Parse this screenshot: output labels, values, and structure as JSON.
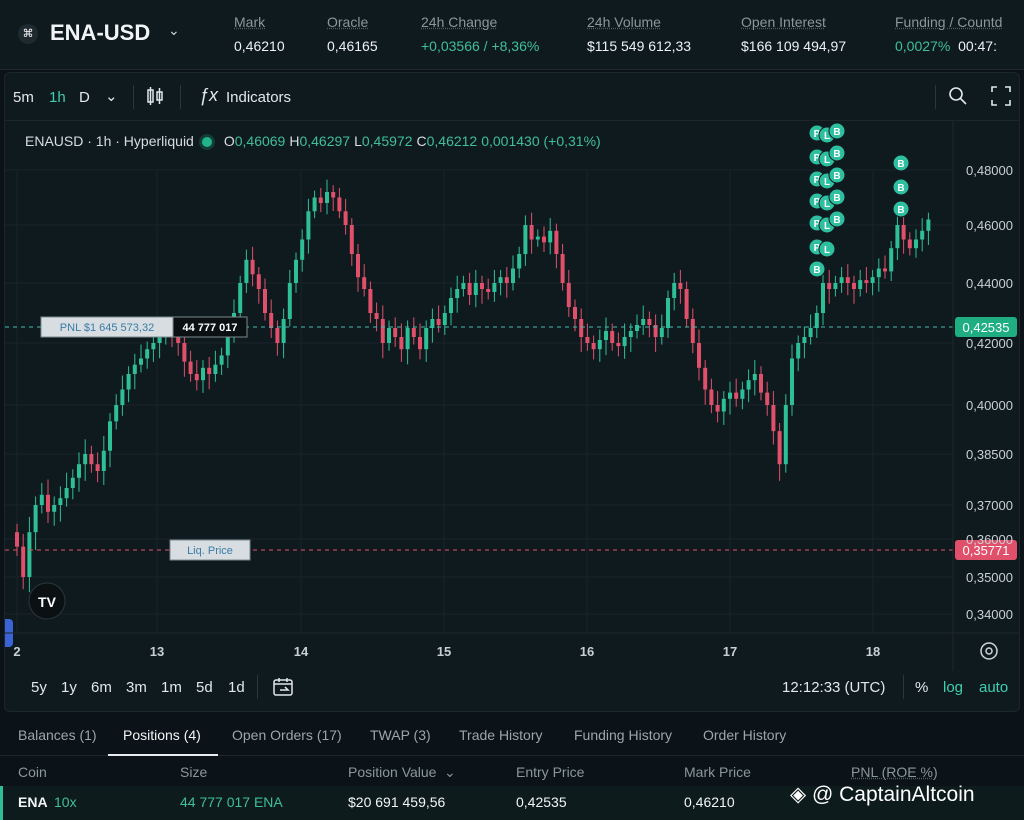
{
  "header": {
    "logo": "⌘",
    "pair": "ENA-USD",
    "stats": [
      {
        "label": "Mark",
        "value": "0,46210",
        "green": false
      },
      {
        "label": "Oracle",
        "value": "0,46165",
        "green": false
      },
      {
        "label": "24h Change",
        "value": "+0,03566 / +8,36%",
        "green": true
      },
      {
        "label": "24h Volume",
        "value": "$115 549 612,33",
        "green": false
      },
      {
        "label": "Open Interest",
        "value": "$166 109 494,97",
        "green": false
      },
      {
        "label": "Funding / Countd",
        "value_a": "0,0027%",
        "value_b": "00:47:",
        "green": true
      }
    ]
  },
  "toolbar": {
    "intervals": [
      "5m",
      "1h",
      "D"
    ],
    "active_interval": "1h",
    "indicators_label": "Indicators"
  },
  "legend": {
    "symbol": "ENAUSD · 1h · Hyperliquid",
    "o": "0,46069",
    "h": "0,46297",
    "l": "0,45972",
    "c": "0,46212",
    "change": "0,001430 (+0,31%)"
  },
  "chart_data": {
    "type": "candlestick",
    "x_ticks": [
      "2",
      "13",
      "14",
      "15",
      "16",
      "17",
      "18"
    ],
    "y_ticks": [
      "0,48000",
      "0,46000",
      "0,44000",
      "0,42000",
      "0,40000",
      "0,38500",
      "0,37000",
      "0,36000",
      "0,35000",
      "0,34000"
    ],
    "price_label": "0,42535",
    "liq_price_value": "0,35771",
    "pnl_label": "PNL $1 645 573,32",
    "size_label": "44 777 017",
    "liq_label": "Liq. Price",
    "trade_markers": [
      "P",
      "L",
      "B"
    ],
    "closes": [
      0.358,
      0.35,
      0.362,
      0.37,
      0.373,
      0.368,
      0.37,
      0.372,
      0.375,
      0.378,
      0.382,
      0.385,
      0.382,
      0.38,
      0.386,
      0.395,
      0.4,
      0.405,
      0.41,
      0.413,
      0.415,
      0.418,
      0.42,
      0.422,
      0.425,
      0.422,
      0.42,
      0.414,
      0.41,
      0.408,
      0.412,
      0.41,
      0.413,
      0.416,
      0.425,
      0.43,
      0.44,
      0.448,
      0.443,
      0.438,
      0.43,
      0.425,
      0.42,
      0.428,
      0.44,
      0.448,
      0.455,
      0.465,
      0.47,
      0.468,
      0.472,
      0.47,
      0.465,
      0.46,
      0.45,
      0.442,
      0.438,
      0.43,
      0.428,
      0.42,
      0.425,
      0.422,
      0.418,
      0.425,
      0.422,
      0.418,
      0.425,
      0.428,
      0.426,
      0.43,
      0.435,
      0.438,
      0.44,
      0.436,
      0.44,
      0.438,
      0.437,
      0.44,
      0.442,
      0.44,
      0.445,
      0.45,
      0.46,
      0.455,
      0.456,
      0.454,
      0.458,
      0.45,
      0.44,
      0.432,
      0.428,
      0.422,
      0.42,
      0.418,
      0.421,
      0.424,
      0.42,
      0.419,
      0.422,
      0.424,
      0.426,
      0.428,
      0.426,
      0.422,
      0.425,
      0.435,
      0.44,
      0.438,
      0.428,
      0.42,
      0.412,
      0.405,
      0.4,
      0.398,
      0.402,
      0.404,
      0.402,
      0.405,
      0.408,
      0.41,
      0.404,
      0.4,
      0.392,
      0.382,
      0.4,
      0.415,
      0.42,
      0.422,
      0.425,
      0.43,
      0.44,
      0.438,
      0.44,
      0.442,
      0.44,
      0.438,
      0.441,
      0.44,
      0.442,
      0.445,
      0.444,
      0.452,
      0.46,
      0.455,
      0.452,
      0.455,
      0.458,
      0.462
    ]
  },
  "bottom_toolbar": {
    "ranges": [
      "5y",
      "1y",
      "6m",
      "3m",
      "1m",
      "5d",
      "1d"
    ],
    "time": "12:12:33 (UTC)",
    "pct": "%",
    "log": "log",
    "auto": "auto"
  },
  "tabs": [
    "Balances (1)",
    "Positions (4)",
    "Open Orders (17)",
    "TWAP (3)",
    "Trade History",
    "Funding History",
    "Order History"
  ],
  "table": {
    "headers": [
      "Coin",
      "Size",
      "Position Value",
      "Entry Price",
      "Mark Price",
      "PNL (ROE %)"
    ],
    "row": {
      "coin": "ENA",
      "lev": "10x",
      "size": "44 777 017 ENA",
      "value": "$20 691 459,56",
      "entry": "0,42535",
      "mark": "0,46210"
    }
  },
  "watermark": "@ CaptainAltcoin"
}
